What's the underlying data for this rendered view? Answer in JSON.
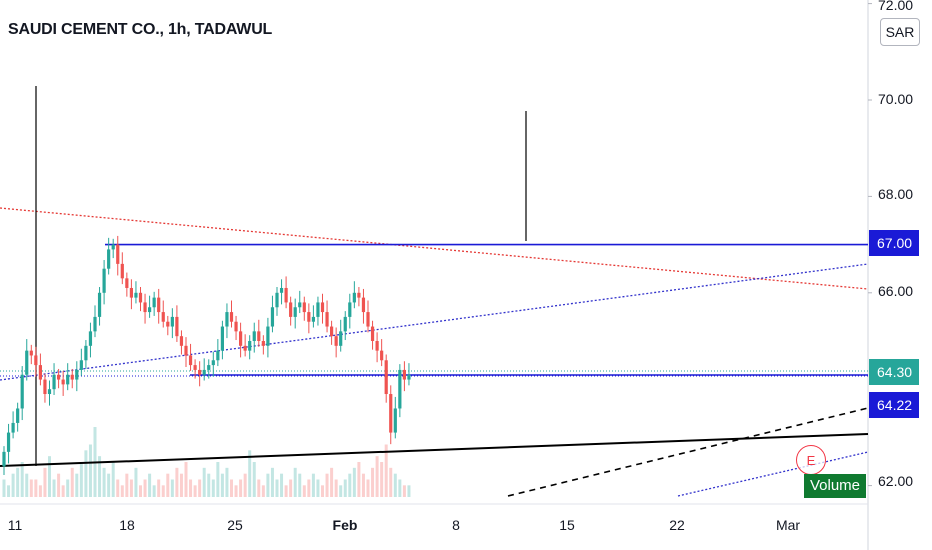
{
  "header": {
    "title": "SAUDI CEMENT CO., 1h, TADAWUL",
    "currency": "SAR"
  },
  "price_scale": {
    "labels": [
      "72.00",
      "70.00",
      "68.00",
      "66.00",
      "62.00"
    ]
  },
  "time_scale": {
    "labels": [
      "11",
      "18",
      "25",
      "Feb",
      "8",
      "15",
      "22",
      "Mar"
    ]
  },
  "price_tags": {
    "resistance": "67.00",
    "last_price": "64.30",
    "support": "64.22"
  },
  "badges": {
    "volume": "Volume",
    "earnings": "E"
  },
  "colors": {
    "up": "#26a69a",
    "down": "#ef5350",
    "horizontal_line": "#1a1ad6",
    "last_price": "#26a69a",
    "red_trendline": "#e53935",
    "blue_trendline": "#3333cc"
  },
  "chart_data": {
    "type": "candlestick",
    "title": "SAUDI CEMENT CO., 1h, TADAWUL",
    "ylim": [
      61.8,
      72.2
    ],
    "y_ticks": [
      62.0,
      66.0,
      68.0,
      70.0,
      72.0
    ],
    "x_ticks": [
      "11",
      "18",
      "25",
      "Feb",
      "8",
      "15",
      "22",
      "Mar"
    ],
    "horizontal_levels": [
      67.0,
      64.22
    ],
    "last_price": 64.3,
    "close_series": [
      62.7,
      63.1,
      63.3,
      63.6,
      64.3,
      64.8,
      64.7,
      64.5,
      64.2,
      63.9,
      64.0,
      64.3,
      64.2,
      64.1,
      64.3,
      64.2,
      64.4,
      64.6,
      64.9,
      65.2,
      65.5,
      66.0,
      66.5,
      66.9,
      67.0,
      66.6,
      66.3,
      66.1,
      65.9,
      66.0,
      65.8,
      65.6,
      65.7,
      65.9,
      65.6,
      65.4,
      65.3,
      65.5,
      65.1,
      64.9,
      64.7,
      64.5,
      64.4,
      64.3,
      64.4,
      64.5,
      64.6,
      64.8,
      65.3,
      65.6,
      65.4,
      65.2,
      64.9,
      64.8,
      65.0,
      65.2,
      65.0,
      64.9,
      65.3,
      65.7,
      66.0,
      66.1,
      65.8,
      65.5,
      65.7,
      65.8,
      65.6,
      65.4,
      65.5,
      65.8,
      65.6,
      65.3,
      65.1,
      64.9,
      65.2,
      65.5,
      65.8,
      66.0,
      65.9,
      65.6,
      65.3,
      65.0,
      64.8,
      64.6,
      63.9,
      63.1,
      63.6,
      64.4,
      64.2,
      64.3
    ],
    "volume_series": [
      3,
      2,
      4,
      5,
      6,
      4,
      3,
      3,
      2,
      5,
      7,
      3,
      4,
      2,
      3,
      5,
      4,
      6,
      8,
      9,
      12,
      7,
      5,
      4,
      6,
      3,
      2,
      4,
      3,
      5,
      2,
      3,
      4,
      2,
      3,
      2,
      4,
      3,
      5,
      4,
      6,
      3,
      2,
      3,
      5,
      4,
      3,
      6,
      4,
      5,
      3,
      2,
      3,
      4,
      8,
      6,
      3,
      2,
      4,
      5,
      3,
      4,
      2,
      3,
      5,
      4,
      2,
      3,
      4,
      3,
      2,
      4,
      5,
      3,
      2,
      3,
      4,
      5,
      6,
      4,
      3,
      5,
      7,
      6,
      9,
      5,
      4,
      3,
      2,
      2
    ]
  }
}
